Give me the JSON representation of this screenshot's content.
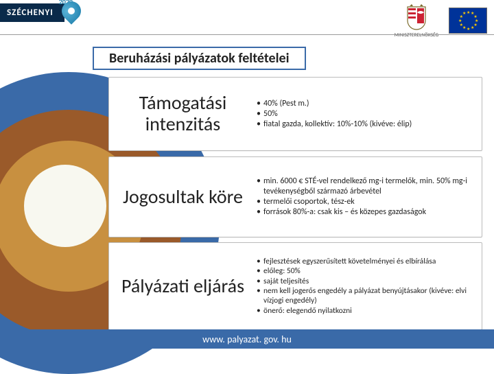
{
  "header": {
    "program_label": "SZÉCHENYI",
    "year": "2020",
    "ministry": "MINISZTERELNÖKSÉG"
  },
  "title": "Beruházási pályázatok feltételei",
  "sections": [
    {
      "heading": "Támogatási intenzitás",
      "bullets": [
        "40% (Pest m.)",
        "50%",
        "fiatal gazda, kollektív: 10%-10% (kivéve: élip)"
      ]
    },
    {
      "heading": "Jogosultak köre",
      "bullets": [
        "min. 6000 € STÉ-vel rendelkező mg-i termelők, min. 50% mg-i tevékenységből származó árbevétel",
        "termelői csoportok, tész-ek",
        "források 80%-a: csak kis – és közepes gazdaságok"
      ]
    },
    {
      "heading": "Pályázati eljárás",
      "bullets": [
        "fejlesztések egyszerűsített követelményei és elbírálása",
        "előleg: 50%",
        "saját teljesítés",
        "nem kell jogerős engedély a pályázat benyújtásakor (kivéve: elvi vízjogi engedély)",
        "önerő: elegendő nyilatkozni"
      ]
    }
  ],
  "footer_url": "www. palyazat. gov. hu",
  "colors": {
    "circle_outer": "#3a6aa8",
    "circle_mid": "#9a5a2a",
    "circle_inner": "#c89040",
    "circle_core": "#f8f8f0",
    "footer": "#3a6aa8",
    "eu_bg": "#003399",
    "eu_star": "#ffcc00"
  }
}
